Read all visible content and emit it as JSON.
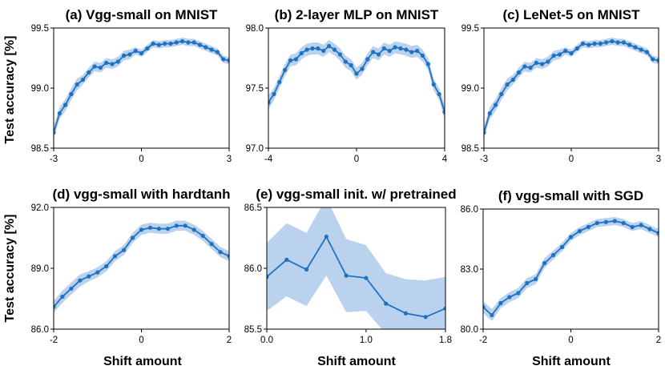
{
  "figure": {
    "ylabel": "Test accuracy [%]",
    "xlabel": "Shift amount",
    "line_color": "#1f72c0",
    "band_color": "#b6d0ec"
  },
  "chart_data": [
    {
      "type": "line",
      "title": "(a) Vgg-small on MNIST",
      "xlim": [
        -3,
        3
      ],
      "ylim": [
        98.5,
        99.5
      ],
      "xticks": [
        -3,
        0,
        3
      ],
      "xtick_labels": [
        "-3",
        "0",
        "3"
      ],
      "yticks": [
        98.5,
        99.0,
        99.5
      ],
      "ytick_labels": [
        "98.5",
        "99.0",
        "99.5"
      ],
      "x": [
        -3.0,
        -2.8,
        -2.6,
        -2.4,
        -2.2,
        -2.0,
        -1.8,
        -1.6,
        -1.4,
        -1.2,
        -1.0,
        -0.8,
        -0.6,
        -0.4,
        -0.2,
        0.0,
        0.2,
        0.4,
        0.6,
        0.8,
        1.0,
        1.2,
        1.4,
        1.6,
        1.8,
        2.0,
        2.2,
        2.4,
        2.6,
        2.8,
        3.0
      ],
      "y": [
        98.63,
        98.79,
        98.86,
        98.95,
        99.03,
        99.07,
        99.13,
        99.18,
        99.17,
        99.21,
        99.2,
        99.22,
        99.27,
        99.28,
        99.31,
        99.29,
        99.33,
        99.37,
        99.36,
        99.37,
        99.37,
        99.38,
        99.39,
        99.38,
        99.38,
        99.36,
        99.34,
        99.32,
        99.3,
        99.24,
        99.23
      ],
      "err": [
        0.05,
        0.05,
        0.05,
        0.05,
        0.05,
        0.04,
        0.04,
        0.04,
        0.04,
        0.04,
        0.04,
        0.04,
        0.04,
        0.04,
        0.03,
        0.03,
        0.03,
        0.03,
        0.03,
        0.03,
        0.03,
        0.03,
        0.03,
        0.03,
        0.03,
        0.03,
        0.03,
        0.03,
        0.03,
        0.03,
        0.03
      ]
    },
    {
      "type": "line",
      "title": "(b) 2-layer MLP on MNIST",
      "xlim": [
        -4,
        4
      ],
      "ylim": [
        97.0,
        98.0
      ],
      "xticks": [
        -4,
        0,
        4
      ],
      "xtick_labels": [
        "-4",
        "0",
        "4"
      ],
      "yticks": [
        97.0,
        97.5,
        98.0
      ],
      "ytick_labels": [
        "97.0",
        "97.5",
        "98.0"
      ],
      "x": [
        -4.0,
        -3.75,
        -3.5,
        -3.25,
        -3.0,
        -2.75,
        -2.5,
        -2.25,
        -2.0,
        -1.75,
        -1.5,
        -1.25,
        -1.0,
        -0.75,
        -0.5,
        -0.25,
        0.0,
        0.25,
        0.5,
        0.75,
        1.0,
        1.25,
        1.5,
        1.75,
        2.0,
        2.25,
        2.5,
        2.75,
        3.0,
        3.25,
        3.5,
        3.75,
        4.0
      ],
      "y": [
        97.38,
        97.45,
        97.55,
        97.65,
        97.73,
        97.74,
        97.79,
        97.82,
        97.83,
        97.83,
        97.81,
        97.85,
        97.82,
        97.78,
        97.72,
        97.69,
        97.62,
        97.66,
        97.74,
        97.8,
        97.78,
        97.83,
        97.81,
        97.84,
        97.83,
        97.82,
        97.8,
        97.81,
        97.77,
        97.7,
        97.53,
        97.45,
        97.3
      ],
      "err": [
        0.06,
        0.05,
        0.05,
        0.05,
        0.05,
        0.05,
        0.05,
        0.05,
        0.05,
        0.05,
        0.05,
        0.05,
        0.05,
        0.05,
        0.05,
        0.05,
        0.05,
        0.05,
        0.05,
        0.05,
        0.05,
        0.05,
        0.05,
        0.05,
        0.05,
        0.05,
        0.05,
        0.05,
        0.05,
        0.05,
        0.05,
        0.05,
        0.06
      ]
    },
    {
      "type": "line",
      "title": "(c) LeNet-5 on MNIST",
      "xlim": [
        -3,
        3
      ],
      "ylim": [
        98.5,
        99.5
      ],
      "xticks": [
        -3,
        0,
        3
      ],
      "xtick_labels": [
        "-3",
        "0",
        "3"
      ],
      "yticks": [
        98.5,
        99.0,
        99.5
      ],
      "ytick_labels": [
        "98.5",
        "99.0",
        "99.5"
      ],
      "x": [
        -3.0,
        -2.8,
        -2.6,
        -2.4,
        -2.2,
        -2.0,
        -1.8,
        -1.6,
        -1.4,
        -1.2,
        -1.0,
        -0.8,
        -0.6,
        -0.4,
        -0.2,
        0.0,
        0.2,
        0.4,
        0.6,
        0.8,
        1.0,
        1.2,
        1.4,
        1.6,
        1.8,
        2.0,
        2.2,
        2.4,
        2.6,
        2.8,
        3.0
      ],
      "y": [
        98.63,
        98.79,
        98.86,
        98.95,
        99.03,
        99.07,
        99.13,
        99.18,
        99.17,
        99.21,
        99.2,
        99.22,
        99.27,
        99.28,
        99.31,
        99.29,
        99.33,
        99.37,
        99.36,
        99.37,
        99.37,
        99.38,
        99.39,
        99.38,
        99.38,
        99.36,
        99.34,
        99.32,
        99.3,
        99.24,
        99.23
      ],
      "err": [
        0.05,
        0.05,
        0.05,
        0.05,
        0.05,
        0.04,
        0.04,
        0.04,
        0.04,
        0.04,
        0.04,
        0.04,
        0.04,
        0.04,
        0.03,
        0.03,
        0.03,
        0.03,
        0.03,
        0.03,
        0.03,
        0.03,
        0.03,
        0.03,
        0.03,
        0.03,
        0.03,
        0.03,
        0.03,
        0.03,
        0.03
      ]
    },
    {
      "type": "line",
      "title": "(d) vgg-small with hardtanh",
      "xlim": [
        -2,
        2
      ],
      "ylim": [
        86.0,
        92.0
      ],
      "xticks": [
        -2,
        0,
        2
      ],
      "xtick_labels": [
        "-2",
        "0",
        "2"
      ],
      "yticks": [
        86.0,
        89.0,
        92.0
      ],
      "ytick_labels": [
        "86.0",
        "89.0",
        "92.0"
      ],
      "x": [
        -2.0,
        -1.8,
        -1.6,
        -1.4,
        -1.2,
        -1.0,
        -0.8,
        -0.6,
        -0.4,
        -0.2,
        0.0,
        0.2,
        0.4,
        0.6,
        0.8,
        1.0,
        1.2,
        1.4,
        1.6,
        1.8,
        2.0
      ],
      "y": [
        87.1,
        87.6,
        88.0,
        88.4,
        88.6,
        88.8,
        89.1,
        89.6,
        89.9,
        90.5,
        90.9,
        91.0,
        90.95,
        90.95,
        91.1,
        91.1,
        90.9,
        90.6,
        90.2,
        89.8,
        89.6
      ],
      "err": [
        0.3,
        0.3,
        0.3,
        0.3,
        0.25,
        0.25,
        0.25,
        0.25,
        0.25,
        0.25,
        0.25,
        0.25,
        0.25,
        0.25,
        0.25,
        0.25,
        0.25,
        0.25,
        0.25,
        0.25,
        0.25
      ]
    },
    {
      "type": "line",
      "title": "(e) vgg-small init. w/ pretrained",
      "xlim": [
        0,
        1.8
      ],
      "ylim": [
        85.5,
        86.5
      ],
      "xticks": [
        0,
        1.0,
        1.8
      ],
      "xtick_labels": [
        "0.0",
        "1.0",
        "1.8"
      ],
      "yticks": [
        85.5,
        86.0,
        86.5
      ],
      "ytick_labels": [
        "85.5",
        "86.0",
        "86.5"
      ],
      "x": [
        0.0,
        0.2,
        0.4,
        0.6,
        0.8,
        1.0,
        1.2,
        1.4,
        1.6,
        1.8
      ],
      "y": [
        85.93,
        86.07,
        85.99,
        86.26,
        85.94,
        85.92,
        85.71,
        85.63,
        85.6,
        85.67
      ],
      "err": [
        0.28,
        0.3,
        0.3,
        0.32,
        0.3,
        0.27,
        0.25,
        0.28,
        0.3,
        0.26
      ]
    },
    {
      "type": "line",
      "title": "(f) vgg-small with SGD",
      "xlim": [
        -2,
        2
      ],
      "ylim": [
        80.0,
        86.0
      ],
      "xticks": [
        -2,
        0,
        2
      ],
      "xtick_labels": [
        "-2",
        "0",
        "2"
      ],
      "yticks": [
        80.0,
        83.0,
        86.0
      ],
      "ytick_labels": [
        "80.0",
        "83.0",
        "86.0"
      ],
      "x": [
        -2.0,
        -1.8,
        -1.6,
        -1.4,
        -1.2,
        -1.0,
        -0.8,
        -0.6,
        -0.4,
        -0.2,
        0.0,
        0.2,
        0.4,
        0.6,
        0.8,
        1.0,
        1.2,
        1.4,
        1.6,
        1.8,
        2.0
      ],
      "y": [
        81.1,
        80.7,
        81.3,
        81.6,
        81.8,
        82.3,
        82.5,
        83.3,
        83.7,
        84.1,
        84.6,
        84.9,
        85.1,
        85.3,
        85.35,
        85.4,
        85.3,
        85.1,
        85.2,
        85.0,
        84.8
      ],
      "err": [
        0.3,
        0.3,
        0.25,
        0.25,
        0.25,
        0.25,
        0.25,
        0.25,
        0.22,
        0.22,
        0.2,
        0.2,
        0.2,
        0.2,
        0.2,
        0.2,
        0.2,
        0.2,
        0.2,
        0.2,
        0.2
      ]
    }
  ]
}
